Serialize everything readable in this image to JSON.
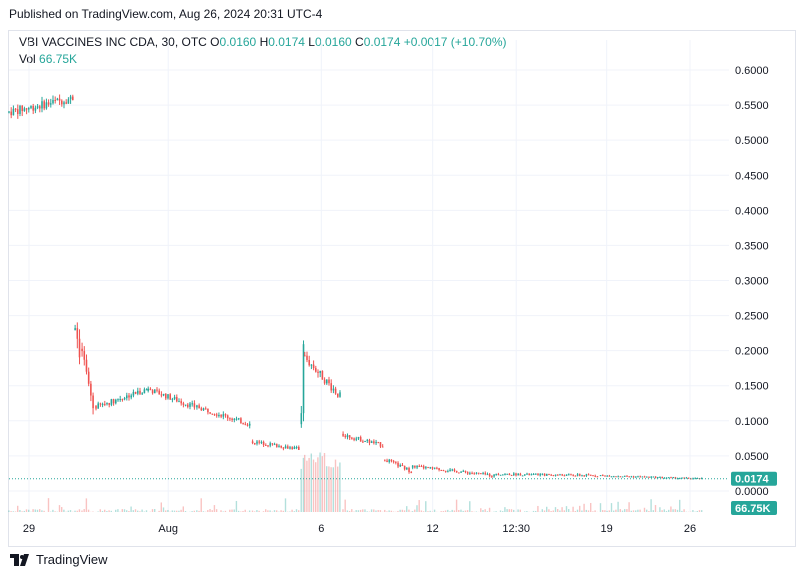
{
  "header": {
    "published": "Published on TradingView.com, Aug 26, 2024 20:31 UTC-4"
  },
  "legend": {
    "symbol": "VBI VACCINES INC CDA, 30, OTC",
    "o_label": "O",
    "o_value": "0.0160",
    "h_label": "H",
    "h_value": "0.0174",
    "l_label": "L",
    "l_value": "0.0160",
    "c_label": "C",
    "c_value": "0.0174",
    "change": "+0.0017 (+10.70%)",
    "vol_label": "Vol",
    "vol_value": "66.75K"
  },
  "footer": {
    "brand": "TradingView"
  },
  "colors": {
    "up": "#26a69a",
    "down": "#ef5350",
    "grid": "#f0f3fa",
    "price_line": "#26a69a"
  },
  "chart_data": {
    "type": "candlestick",
    "title": "VBI VACCINES INC CDA, 30, OTC",
    "ylim": [
      -0.03,
      0.62
    ],
    "y_ticks": [
      "0.6000",
      "0.5500",
      "0.5000",
      "0.4500",
      "0.4000",
      "0.3500",
      "0.3000",
      "0.2500",
      "0.2000",
      "0.1500",
      "0.1000",
      "0.0500",
      "0.0000"
    ],
    "y_tick_values": [
      0.6,
      0.55,
      0.5,
      0.45,
      0.4,
      0.35,
      0.3,
      0.25,
      0.2,
      0.15,
      0.1,
      0.05,
      0.0
    ],
    "x_ticks": [
      "29",
      "Aug",
      "6",
      "12",
      "12:30",
      "19",
      "26"
    ],
    "x_tick_positions": [
      0.0,
      0.2,
      0.42,
      0.58,
      0.7,
      0.83,
      1.0
    ],
    "last_price": 0.0174,
    "last_price_label": "0.0174",
    "volume_label": "66.75K",
    "segments": [
      {
        "from": 0.0,
        "to": 0.095,
        "start": 0.54,
        "end": 0.56,
        "noise": 0.012
      },
      {
        "from": 0.095,
        "to": 0.105,
        "start": 0.24,
        "end": 0.2,
        "noise": 0.025
      },
      {
        "from": 0.105,
        "to": 0.125,
        "start": 0.2,
        "end": 0.12,
        "noise": 0.015
      },
      {
        "from": 0.125,
        "to": 0.2,
        "start": 0.12,
        "end": 0.145,
        "noise": 0.008
      },
      {
        "from": 0.2,
        "to": 0.27,
        "start": 0.145,
        "end": 0.12,
        "noise": 0.008
      },
      {
        "from": 0.27,
        "to": 0.35,
        "start": 0.12,
        "end": 0.095,
        "noise": 0.007
      },
      {
        "from": 0.35,
        "to": 0.42,
        "start": 0.07,
        "end": 0.06,
        "noise": 0.005
      },
      {
        "from": 0.42,
        "to": 0.425,
        "start": 0.1,
        "end": 0.22,
        "noise": 0.03
      },
      {
        "from": 0.425,
        "to": 0.48,
        "start": 0.19,
        "end": 0.135,
        "noise": 0.012
      },
      {
        "from": 0.48,
        "to": 0.54,
        "start": 0.08,
        "end": 0.065,
        "noise": 0.006
      },
      {
        "from": 0.54,
        "to": 0.58,
        "start": 0.045,
        "end": 0.028,
        "noise": 0.005
      },
      {
        "from": 0.58,
        "to": 0.7,
        "start": 0.035,
        "end": 0.022,
        "noise": 0.004
      },
      {
        "from": 0.7,
        "to": 0.85,
        "start": 0.024,
        "end": 0.022,
        "noise": 0.003
      },
      {
        "from": 0.85,
        "to": 1.0,
        "start": 0.022,
        "end": 0.0174,
        "noise": 0.002
      }
    ]
  }
}
